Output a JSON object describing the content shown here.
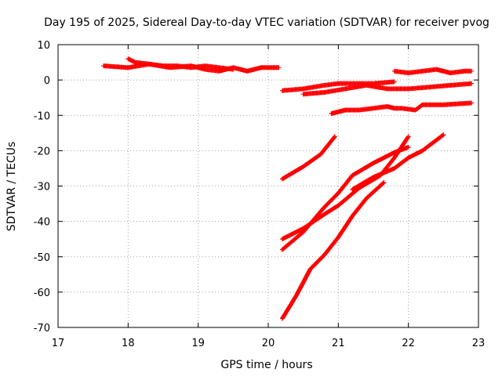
{
  "chart_data": {
    "type": "scatter",
    "title": "Day 195 of 2025, Sidereal Day-to-day VTEC variation (SDTVAR) for receiver pvog",
    "xlabel": "GPS time / hours",
    "ylabel": "SDTVAR / TECUs",
    "xlim": [
      17,
      23
    ],
    "ylim": [
      -70,
      10
    ],
    "xticks": [
      "17",
      "18",
      "19",
      "20",
      "21",
      "22",
      "23"
    ],
    "yticks": [
      "10",
      "0",
      "-10",
      "-20",
      "-30",
      "-40",
      "-50",
      "-60",
      "-70"
    ],
    "grid": true,
    "marker": "+",
    "color": "#ff0000",
    "series": [
      {
        "x": [
          17.65,
          18.0,
          18.3,
          18.6,
          18.9,
          19.1,
          19.3,
          19.5,
          19.7,
          19.9,
          20.15
        ],
        "y": [
          4.0,
          3.5,
          4.5,
          3.5,
          4.0,
          3.0,
          2.5,
          3.5,
          2.5,
          3.5,
          3.5
        ]
      },
      {
        "x": [
          18.0,
          18.1,
          18.3,
          18.5,
          18.7,
          18.9,
          19.1,
          19.3,
          19.5
        ],
        "y": [
          6.0,
          5.0,
          4.5,
          4.0,
          4.0,
          3.5,
          4.0,
          3.5,
          3.0
        ]
      },
      {
        "x": [
          20.2,
          20.5,
          20.8,
          21.0,
          21.2,
          21.5,
          21.8
        ],
        "y": [
          -3.0,
          -2.5,
          -1.5,
          -1.0,
          -1.0,
          -1.0,
          -0.5
        ]
      },
      {
        "x": [
          20.5,
          20.8,
          21.1,
          21.4,
          21.7,
          22.0,
          22.3,
          22.6,
          22.9
        ],
        "y": [
          -4.0,
          -3.5,
          -2.5,
          -1.5,
          -2.5,
          -2.5,
          -2.0,
          -1.5,
          -1.0
        ]
      },
      {
        "x": [
          21.8,
          22.0,
          22.2,
          22.4,
          22.5,
          22.6,
          22.8,
          22.9
        ],
        "y": [
          2.5,
          2.0,
          2.5,
          3.0,
          2.5,
          2.0,
          2.5,
          2.5
        ]
      },
      {
        "x": [
          20.9,
          21.1,
          21.3,
          21.5,
          21.7,
          21.8,
          21.9,
          22.1,
          22.2,
          22.5,
          22.9
        ],
        "y": [
          -9.5,
          -8.5,
          -8.5,
          -8.0,
          -7.5,
          -8.0,
          -8.0,
          -8.5,
          -7.0,
          -7.0,
          -6.5
        ]
      },
      {
        "x": [
          20.2,
          20.5,
          20.75,
          20.95
        ],
        "y": [
          -28.0,
          -24.5,
          -21.0,
          -16.0
        ]
      },
      {
        "x": [
          20.2,
          20.5,
          20.8,
          21.0,
          21.3,
          21.6,
          21.8,
          22.0
        ],
        "y": [
          -45.0,
          -42.0,
          -38.0,
          -35.5,
          -30.5,
          -27.0,
          -22.0,
          -16.0
        ]
      },
      {
        "x": [
          20.2,
          20.5,
          20.8,
          21.0,
          21.2,
          21.5,
          21.8,
          22.0
        ],
        "y": [
          -48.0,
          -43.0,
          -36.0,
          -32.0,
          -27.0,
          -23.5,
          -20.5,
          -19.0
        ]
      },
      {
        "x": [
          21.2,
          21.5,
          21.8,
          22.0,
          22.2,
          22.5
        ],
        "y": [
          -31.0,
          -27.5,
          -25.0,
          -22.0,
          -20.0,
          -15.5
        ]
      },
      {
        "x": [
          20.2,
          20.4,
          20.6,
          20.8,
          21.0,
          21.2,
          21.4,
          21.65
        ],
        "y": [
          -67.5,
          -61.0,
          -53.5,
          -49.5,
          -44.5,
          -38.5,
          -33.5,
          -29.0
        ]
      }
    ]
  }
}
